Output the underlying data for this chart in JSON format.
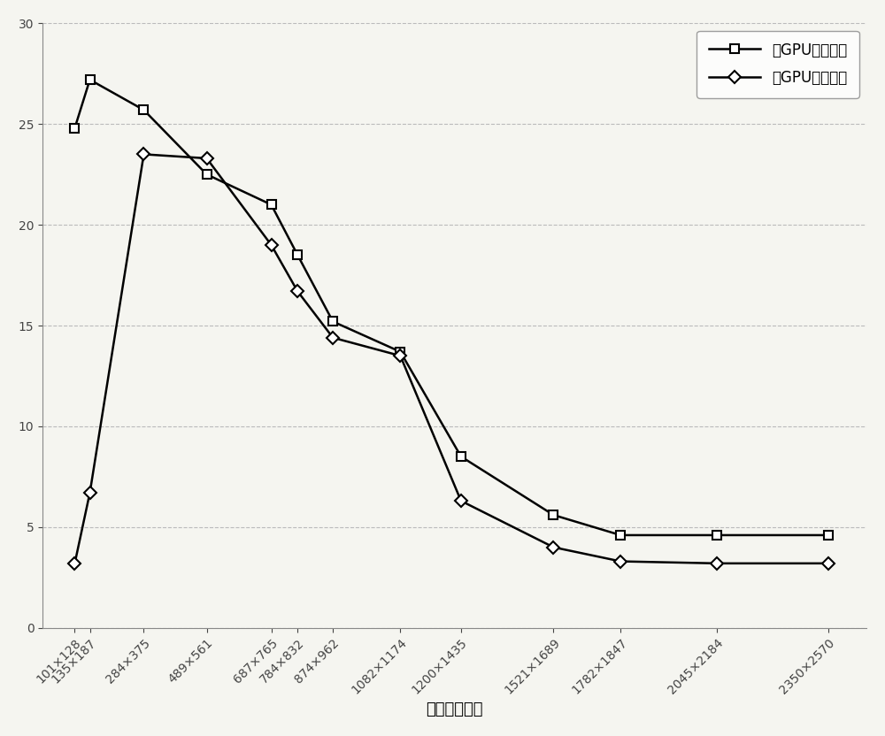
{
  "x_labels": [
    "101×128",
    "135×187",
    "284×375",
    "489×561",
    "687×765",
    "784×832",
    "874×962",
    "1082×1174",
    "1200×1435",
    "1521×1689",
    "1782×1847",
    "2045×2184",
    "2350×2570"
  ],
  "x_numeric": [
    114,
    161,
    329,
    525,
    726,
    808,
    918,
    1128,
    1317,
    1605,
    1814,
    2114,
    2460
  ],
  "single_gpu": [
    24.8,
    27.2,
    25.7,
    22.5,
    21.0,
    18.5,
    15.2,
    13.7,
    8.5,
    5.6,
    4.6,
    4.6,
    4.6
  ],
  "multi_gpu": [
    3.2,
    6.7,
    23.5,
    23.3,
    19.0,
    16.7,
    14.4,
    13.5,
    6.3,
    4.0,
    3.3,
    3.2,
    3.2
  ],
  "single_gpu_color": "#000000",
  "multi_gpu_color": "#000000",
  "single_gpu_label": "单GPU总加速比",
  "multi_gpu_label": "多GPU总加速比",
  "xlabel": "影像像幅大小",
  "ylim": [
    0,
    30
  ],
  "yticks": [
    0,
    5,
    10,
    15,
    20,
    25,
    30
  ],
  "grid_color": "#bbbbbb",
  "bg_color": "#f5f5f0",
  "marker_size": 7,
  "linewidth": 1.8,
  "tick_fontsize": 10,
  "label_fontsize": 13,
  "legend_fontsize": 12
}
